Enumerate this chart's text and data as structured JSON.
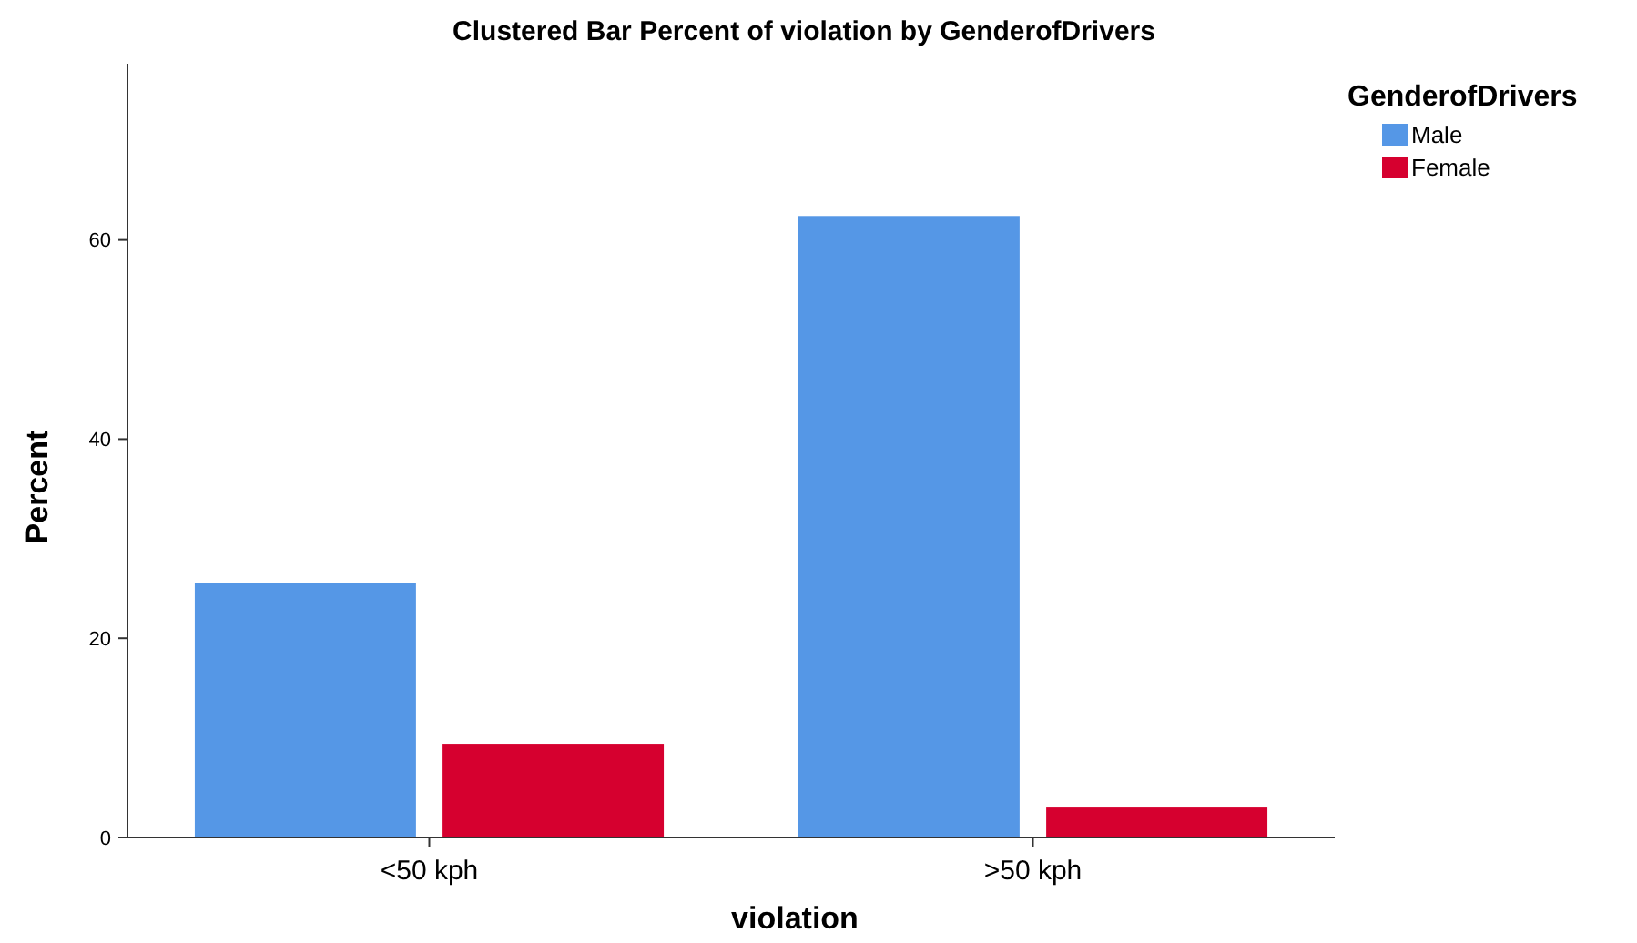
{
  "chart_data": {
    "type": "bar",
    "title": "Clustered Bar Percent of violation by GenderofDrivers",
    "xlabel": "violation",
    "ylabel": "Percent",
    "legend_title": "GenderofDrivers",
    "categories": [
      "<50 kph",
      ">50 kph"
    ],
    "series": [
      {
        "name": "Male",
        "color": "#5597e6",
        "values": [
          25.6,
          62.5
        ]
      },
      {
        "name": "Female",
        "color": "#d6002f",
        "values": [
          9.5,
          3.1
        ]
      }
    ],
    "ylim": [
      0,
      77.7
    ],
    "yticks": [
      0,
      20,
      40,
      60
    ],
    "grid": false,
    "legend": "top right"
  }
}
